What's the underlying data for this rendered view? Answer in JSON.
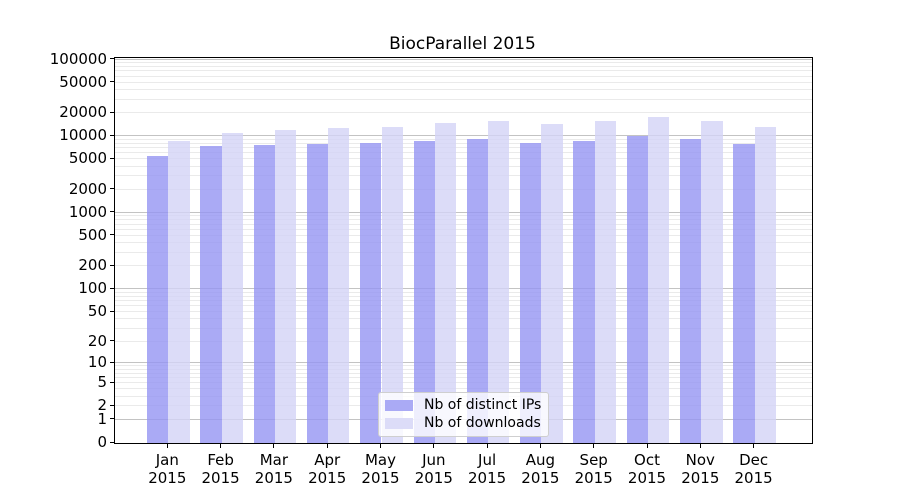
{
  "figure": {
    "title": "BiocParallel 2015"
  },
  "chart_data": {
    "type": "bar",
    "title": "BiocParallel 2015",
    "categories": [
      "Jan",
      "Feb",
      "Mar",
      "Apr",
      "May",
      "Jun",
      "Jul",
      "Aug",
      "Sep",
      "Oct",
      "Nov",
      "Dec"
    ],
    "category_year": "2015",
    "series": [
      {
        "name": "Nb of distinct IPs",
        "color": "#aaaaf5",
        "values": [
          5600,
          7400,
          7600,
          7900,
          8100,
          8600,
          9100,
          8100,
          8800,
          10100,
          9200,
          7900
        ]
      },
      {
        "name": "Nb of downloads",
        "color": "#dcdcf8",
        "values": [
          8700,
          11100,
          12100,
          12900,
          13100,
          15100,
          15700,
          14600,
          15600,
          17700,
          15600,
          13200
        ]
      }
    ],
    "y_scale": "log10(1+x)",
    "ylim": [
      0,
      100000
    ],
    "y_ticks": [
      0,
      1,
      2,
      5,
      10,
      20,
      50,
      100,
      200,
      500,
      1000,
      2000,
      5000,
      10000,
      20000,
      50000,
      100000
    ],
    "grid": {
      "horizontal": true,
      "minor_log_lines": true,
      "major_color": "#c3c3c3",
      "minor_color": "#eaeaea"
    },
    "legend": {
      "position": "bottom-center"
    },
    "frame_color": "#000000",
    "background": "#ffffff"
  }
}
